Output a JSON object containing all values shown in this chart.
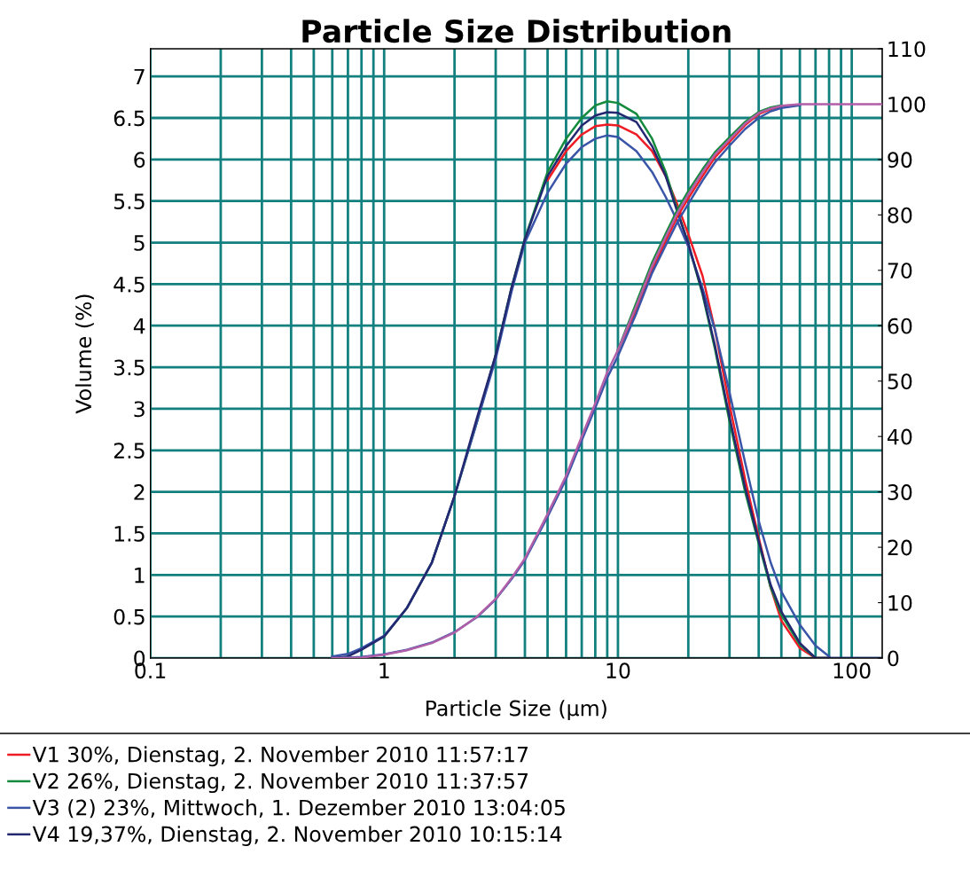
{
  "chart_data": {
    "type": "line",
    "title": "Particle Size Distribution",
    "xlabel": "Particle Size (µm)",
    "ylabel": "Volume (%)",
    "log": "x",
    "x": [
      0.6,
      0.7,
      0.8,
      1,
      1.25,
      1.6,
      2,
      2.5,
      3,
      3.5,
      4,
      5,
      6,
      7,
      8,
      9,
      10,
      12,
      14,
      16,
      18,
      20,
      23,
      26,
      30,
      35,
      40,
      45,
      50,
      60,
      70,
      80,
      100,
      135
    ],
    "series": [
      {
        "name": "V1 30%, Dienstag, 2. November 2010 11:57:17",
        "color": "#ee1c25",
        "values": [
          null,
          null,
          null,
          null,
          null,
          null,
          null,
          null,
          null,
          null,
          null,
          5.75,
          6.1,
          6.3,
          6.4,
          6.42,
          6.41,
          6.3,
          6.1,
          5.8,
          5.45,
          5.1,
          4.6,
          3.95,
          3.05,
          2.15,
          1.45,
          0.85,
          0.45,
          0.12,
          0,
          0,
          null,
          null
        ]
      },
      {
        "name": "V2 26%, Dienstag, 2. November 2010 11:37:57",
        "color": "#138a3c",
        "values": [
          null,
          null,
          null,
          0.26,
          0.6,
          1.15,
          1.95,
          2.85,
          3.65,
          4.45,
          5.05,
          5.85,
          6.25,
          6.5,
          6.65,
          6.7,
          6.68,
          6.55,
          6.25,
          5.85,
          5.38,
          4.98,
          4.38,
          3.72,
          2.85,
          2.0,
          1.38,
          0.85,
          0.52,
          0.16,
          0,
          0,
          null,
          null
        ]
      },
      {
        "name": "V3 (2) 23%, Mittwoch, 1. Dezember 2010 13:04:05",
        "color": "#3a55a8",
        "values": [
          0.02,
          0.05,
          0.12,
          0.27,
          0.6,
          1.15,
          1.95,
          2.85,
          3.6,
          4.4,
          5.0,
          5.6,
          5.95,
          6.15,
          6.25,
          6.29,
          6.27,
          6.1,
          5.85,
          5.55,
          5.25,
          4.95,
          4.45,
          3.95,
          3.2,
          2.35,
          1.65,
          1.15,
          0.8,
          0.4,
          0.15,
          0.02,
          null,
          null
        ]
      },
      {
        "name": "V4 19,37%, Dienstag, 2. November 2010 10:15:14",
        "color": "#232870",
        "values": [
          0,
          0.02,
          0.1,
          0.26,
          0.6,
          1.15,
          1.95,
          2.9,
          3.65,
          4.45,
          5.04,
          5.8,
          6.16,
          6.41,
          6.53,
          6.57,
          6.56,
          6.45,
          6.16,
          5.8,
          5.36,
          4.99,
          4.4,
          3.76,
          2.9,
          2.05,
          1.41,
          0.88,
          0.56,
          0.18,
          0,
          0,
          0,
          0
        ]
      },
      {
        "color": "#ee1c25",
        "axis": "y2",
        "values": [
          null,
          null,
          null,
          null,
          null,
          null,
          null,
          null,
          null,
          null,
          null,
          null,
          null,
          null,
          null,
          null,
          55.6,
          63,
          70,
          75.3,
          79.8,
          83,
          87,
          90.4,
          93.2,
          96.2,
          98.2,
          99.1,
          99.6,
          null,
          null,
          null,
          null,
          null
        ]
      },
      {
        "color": "#138a3c",
        "axis": "y2",
        "values": [
          null,
          null,
          null,
          null,
          null,
          null,
          null,
          null,
          null,
          null,
          null,
          null,
          null,
          null,
          null,
          null,
          55.6,
          64.2,
          71.4,
          76.6,
          81,
          84.3,
          88.2,
          91.3,
          94,
          96.8,
          98.6,
          99.4,
          99.8,
          null,
          null,
          null,
          null,
          null
        ]
      },
      {
        "color": "#3a55a8",
        "axis": "y2",
        "values": [
          0,
          0.1,
          0.2,
          0.7,
          1.5,
          2.8,
          4.7,
          7.4,
          10.6,
          14.2,
          17.7,
          25.5,
          32.3,
          39.3,
          45.2,
          50.6,
          54.5,
          62.3,
          69.5,
          74.5,
          78.8,
          82,
          86.2,
          89.5,
          92.5,
          95.5,
          97.5,
          98.7,
          99.3,
          99.8,
          null,
          null,
          null,
          null
        ]
      },
      {
        "color": "#b15fa8",
        "axis": "y2",
        "values": [
          0,
          0,
          0.1,
          0.6,
          1.4,
          2.7,
          4.6,
          7.5,
          10.7,
          14.4,
          18,
          26,
          32.9,
          40,
          46,
          51.6,
          55.6,
          63.6,
          70.8,
          76,
          80.4,
          83.7,
          87.7,
          90.9,
          93.6,
          96.5,
          98.4,
          99.2,
          99.7,
          100,
          100,
          100,
          100,
          100
        ]
      }
    ],
    "xlim": [
      0.1,
      135
    ],
    "xticks": [
      0.1,
      {
        "value": 0.2,
        "label": null
      },
      {
        "value": 0.3,
        "label": null
      },
      {
        "value": 0.4,
        "label": null
      },
      {
        "value": 0.5,
        "label": null
      },
      {
        "value": 0.6,
        "label": null
      },
      {
        "value": 0.7,
        "label": null
      },
      {
        "value": 0.8,
        "label": null
      },
      {
        "value": 0.9,
        "label": null
      },
      1,
      {
        "value": 2,
        "label": null
      },
      {
        "value": 3,
        "label": null
      },
      {
        "value": 4,
        "label": null
      },
      {
        "value": 5,
        "label": null
      },
      {
        "value": 6,
        "label": null
      },
      {
        "value": 7,
        "label": null
      },
      {
        "value": 8,
        "label": null
      },
      {
        "value": 9,
        "label": null
      },
      10,
      {
        "value": 20,
        "label": null
      },
      {
        "value": 30,
        "label": null
      },
      {
        "value": 40,
        "label": null
      },
      {
        "value": 50,
        "label": null
      },
      {
        "value": 60,
        "label": null
      },
      {
        "value": 70,
        "label": null
      },
      {
        "value": 80,
        "label": null
      },
      {
        "value": 90,
        "label": null
      },
      100
    ],
    "ylim": [
      0,
      7.333
    ],
    "yticks": [
      0,
      0.5,
      1,
      1.5,
      2,
      2.5,
      3,
      3.5,
      4,
      4.5,
      5,
      5.5,
      6,
      6.5,
      7
    ],
    "y2lim": [
      0,
      110
    ],
    "y2ticks": [
      0,
      10,
      20,
      30,
      40,
      50,
      60,
      70,
      80,
      90,
      100,
      110
    ],
    "grid": true,
    "legend": "bottom",
    "marker": "none",
    "line_style": "solid"
  }
}
